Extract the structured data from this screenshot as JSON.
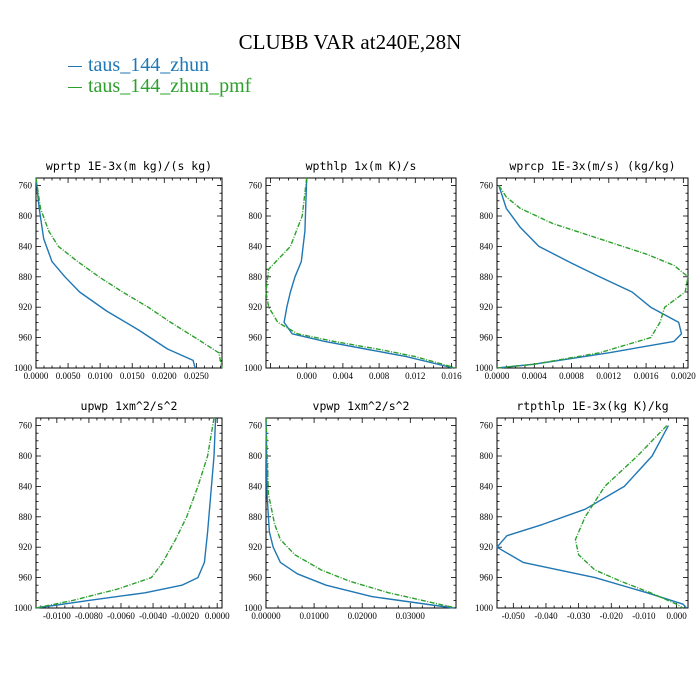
{
  "title": "CLUBB VAR at240E,28N",
  "legend": [
    {
      "name": "taus_144_zhun",
      "color": "#1f77b4"
    },
    {
      "name": "taus_144_zhun_pmf",
      "color": "#2ca02c"
    }
  ],
  "chart_data": [
    {
      "type": "line",
      "title": "wprtp  1E-3x(m kg)/(s kg)",
      "xlim": [
        0,
        0.029
      ],
      "ylim": [
        1000,
        750
      ],
      "grid": false,
      "yticks": [
        760,
        800,
        840,
        880,
        920,
        960,
        1000
      ],
      "xticks": [
        0.0,
        0.005,
        0.01,
        0.015,
        0.02,
        0.025
      ],
      "xticklabels": [
        "0.0000",
        "0.0050",
        "0.0100",
        "0.0150",
        "0.0200",
        "0.0250"
      ],
      "series": [
        {
          "name": "taus_144_zhun",
          "y": [
            750,
            790,
            830,
            860,
            880,
            900,
            925,
            950,
            975,
            990,
            1000
          ],
          "x": [
            0.0,
            0.0005,
            0.0012,
            0.0025,
            0.0045,
            0.0068,
            0.011,
            0.016,
            0.0205,
            0.0245,
            0.0248
          ]
        },
        {
          "name": "taus_144_zhun_pmf",
          "y": [
            750,
            790,
            820,
            840,
            860,
            880,
            900,
            920,
            940,
            960,
            980,
            1000
          ],
          "x": [
            0.0,
            0.0007,
            0.002,
            0.0035,
            0.0065,
            0.0098,
            0.0135,
            0.0175,
            0.021,
            0.0248,
            0.0285,
            0.029
          ]
        }
      ]
    },
    {
      "type": "line",
      "title": "wpthlp  1x(m K)/s",
      "xlim": [
        -0.0045,
        0.0165
      ],
      "ylim": [
        1000,
        750
      ],
      "grid": false,
      "yticks": [
        760,
        800,
        840,
        880,
        920,
        960,
        1000
      ],
      "xticks": [
        0.0,
        0.004,
        0.008,
        0.012,
        0.016
      ],
      "xticklabels": [
        "0.000",
        "0.004",
        "0.008",
        "0.012",
        "0.016"
      ],
      "series": [
        {
          "name": "taus_144_zhun",
          "y": [
            750,
            820,
            860,
            880,
            900,
            920,
            940,
            955,
            965,
            975,
            985,
            1000
          ],
          "x": [
            0.0,
            -0.0002,
            -0.0006,
            -0.0013,
            -0.0018,
            -0.0022,
            -0.0025,
            -0.0016,
            0.002,
            0.0065,
            0.011,
            0.0162
          ]
        },
        {
          "name": "taus_144_zhun_pmf",
          "y": [
            750,
            800,
            840,
            870,
            900,
            920,
            940,
            955,
            965,
            975,
            985,
            1000
          ],
          "x": [
            0.0,
            -0.0005,
            -0.0018,
            -0.0042,
            -0.0045,
            -0.0042,
            -0.0032,
            -0.001,
            0.003,
            0.0078,
            0.012,
            0.0165
          ]
        }
      ]
    },
    {
      "type": "line",
      "title": "wprcp  1E-3x(m/s) (kg/kg)",
      "xlim": [
        0,
        0.00205
      ],
      "ylim": [
        1000,
        750
      ],
      "grid": false,
      "yticks": [
        760,
        800,
        840,
        880,
        920,
        960,
        1000
      ],
      "xticks": [
        0.0,
        0.0004,
        0.0008,
        0.0012,
        0.0016,
        0.002
      ],
      "xticklabels": [
        "0.0000",
        "0.0004",
        "0.0008",
        "0.0012",
        "0.0016",
        "0.0020"
      ],
      "series": [
        {
          "name": "taus_144_zhun",
          "y": [
            760,
            790,
            815,
            840,
            862,
            880,
            900,
            920,
            940,
            955,
            965,
            980,
            995,
            1000
          ],
          "x": [
            2e-05,
            0.0001,
            0.00025,
            0.00045,
            0.0008,
            0.0011,
            0.00145,
            0.00165,
            0.00195,
            0.00198,
            0.0019,
            0.0012,
            0.0004,
            0.0
          ]
        },
        {
          "name": "taus_144_zhun_pmf",
          "y": [
            760,
            775,
            790,
            810,
            830,
            850,
            865,
            880,
            900,
            920,
            940,
            960,
            980,
            995,
            1000
          ],
          "x": [
            2e-05,
            0.0001,
            0.00025,
            0.0006,
            0.0011,
            0.0016,
            0.0019,
            0.00205,
            0.00202,
            0.0018,
            0.00175,
            0.00165,
            0.0011,
            0.0004,
            0.0
          ]
        }
      ]
    },
    {
      "type": "line",
      "title": "upwp  1xm^2/s^2",
      "xlim": [
        -0.0113,
        0.0003
      ],
      "ylim": [
        1000,
        750
      ],
      "grid": false,
      "yticks": [
        760,
        800,
        840,
        880,
        920,
        960,
        1000
      ],
      "xticks": [
        -0.01,
        -0.008,
        -0.006,
        -0.004,
        -0.002,
        0.0
      ],
      "xticklabels": [
        "-0.0100",
        "-0.0080",
        "-0.0060",
        "-0.0040",
        "-0.0020",
        "0.0000"
      ],
      "series": [
        {
          "name": "taus_144_zhun",
          "y": [
            750,
            800,
            850,
            900,
            940,
            960,
            970,
            980,
            990,
            1000
          ],
          "x": [
            -0.0001,
            -0.0002,
            -0.0004,
            -0.0006,
            -0.0008,
            -0.0012,
            -0.0022,
            -0.0045,
            -0.008,
            -0.0113
          ]
        },
        {
          "name": "taus_144_zhun_pmf",
          "y": [
            750,
            800,
            840,
            880,
            910,
            940,
            960,
            975,
            990,
            1000
          ],
          "x": [
            -0.0002,
            -0.0006,
            -0.0012,
            -0.0019,
            -0.0026,
            -0.0034,
            -0.0041,
            -0.0062,
            -0.009,
            -0.0113
          ]
        }
      ]
    },
    {
      "type": "line",
      "title": "vpwp  1xm^2/s^2",
      "xlim": [
        0,
        0.0395
      ],
      "ylim": [
        1000,
        750
      ],
      "grid": false,
      "yticks": [
        760,
        800,
        840,
        880,
        920,
        960,
        1000
      ],
      "xticks": [
        0.0,
        0.01,
        0.02,
        0.03
      ],
      "xticklabels": [
        "0.00000",
        "0.01000",
        "0.02000",
        "0.03000"
      ],
      "series": [
        {
          "name": "taus_144_zhun",
          "y": [
            750,
            850,
            900,
            920,
            940,
            955,
            970,
            985,
            1000
          ],
          "x": [
            0.0,
            0.0002,
            0.0007,
            0.0015,
            0.003,
            0.0065,
            0.0125,
            0.022,
            0.039
          ]
        },
        {
          "name": "taus_144_zhun_pmf",
          "y": [
            750,
            850,
            890,
            910,
            930,
            950,
            965,
            980,
            1000
          ],
          "x": [
            0.0,
            0.0005,
            0.0018,
            0.003,
            0.006,
            0.0115,
            0.0175,
            0.0255,
            0.0395
          ]
        }
      ]
    },
    {
      "type": "line",
      "title": "rtpthlp  1E-3x(kg K)/kg",
      "xlim": [
        -0.055,
        0.0035
      ],
      "ylim": [
        1000,
        750
      ],
      "grid": false,
      "yticks": [
        760,
        800,
        840,
        880,
        920,
        960,
        1000
      ],
      "xticks": [
        -0.05,
        -0.04,
        -0.03,
        -0.02,
        -0.01,
        0.0
      ],
      "xticklabels": [
        "-0.050",
        "-0.040",
        "-0.030",
        "-0.020",
        "-0.010",
        "0.000"
      ],
      "series": [
        {
          "name": "taus_144_zhun",
          "y": [
            760,
            800,
            840,
            870,
            890,
            905,
            920,
            940,
            960,
            980,
            995,
            1000
          ],
          "x": [
            -0.0025,
            -0.0075,
            -0.016,
            -0.028,
            -0.041,
            -0.052,
            -0.055,
            -0.047,
            -0.025,
            -0.009,
            0.002,
            0.003
          ]
        },
        {
          "name": "taus_144_zhun_pmf",
          "y": [
            760,
            800,
            840,
            880,
            910,
            930,
            950,
            965,
            980,
            995,
            1000
          ],
          "x": [
            -0.003,
            -0.012,
            -0.022,
            -0.028,
            -0.031,
            -0.03,
            -0.025,
            -0.017,
            -0.008,
            0.0,
            0.002
          ]
        }
      ]
    }
  ]
}
